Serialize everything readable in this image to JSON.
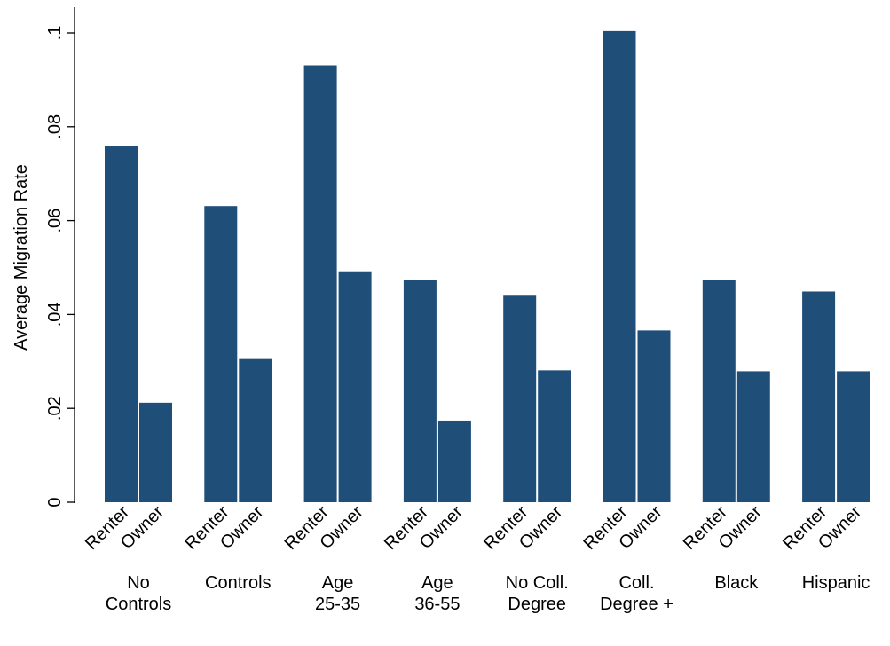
{
  "chart_data": {
    "type": "bar",
    "title": "",
    "xlabel": "",
    "ylabel": "Average Migration Rate",
    "ylim": [
      0,
      0.1
    ],
    "yticks": [
      0,
      0.02,
      0.04,
      0.06,
      0.08,
      0.1
    ],
    "ytick_labels": [
      "0",
      ".02",
      ".04",
      ".06",
      ".08",
      ".1"
    ],
    "grid": false,
    "legend": "none",
    "bar_color": "#1f4e79",
    "groups": [
      {
        "label": [
          "No",
          "Controls"
        ],
        "bars": [
          {
            "label": "Renter",
            "value": 0.0758
          },
          {
            "label": "Owner",
            "value": 0.0212
          }
        ]
      },
      {
        "label": [
          "Controls"
        ],
        "bars": [
          {
            "label": "Renter",
            "value": 0.0631
          },
          {
            "label": "Owner",
            "value": 0.0305
          }
        ]
      },
      {
        "label": [
          "Age",
          "25-35"
        ],
        "bars": [
          {
            "label": "Renter",
            "value": 0.0931
          },
          {
            "label": "Owner",
            "value": 0.0492
          }
        ]
      },
      {
        "label": [
          "Age",
          "36-55"
        ],
        "bars": [
          {
            "label": "Renter",
            "value": 0.0474
          },
          {
            "label": "Owner",
            "value": 0.0174
          }
        ]
      },
      {
        "label": [
          "No Coll.",
          "Degree"
        ],
        "bars": [
          {
            "label": "Renter",
            "value": 0.044
          },
          {
            "label": "Owner",
            "value": 0.0281
          }
        ]
      },
      {
        "label": [
          "Coll.",
          "Degree +"
        ],
        "bars": [
          {
            "label": "Renter",
            "value": 0.1004
          },
          {
            "label": "Owner",
            "value": 0.0366
          }
        ]
      },
      {
        "label": [
          "Black"
        ],
        "bars": [
          {
            "label": "Renter",
            "value": 0.0474
          },
          {
            "label": "Owner",
            "value": 0.0279
          }
        ]
      },
      {
        "label": [
          "Hispanic"
        ],
        "bars": [
          {
            "label": "Renter",
            "value": 0.0449
          },
          {
            "label": "Owner",
            "value": 0.0279
          }
        ]
      }
    ]
  }
}
